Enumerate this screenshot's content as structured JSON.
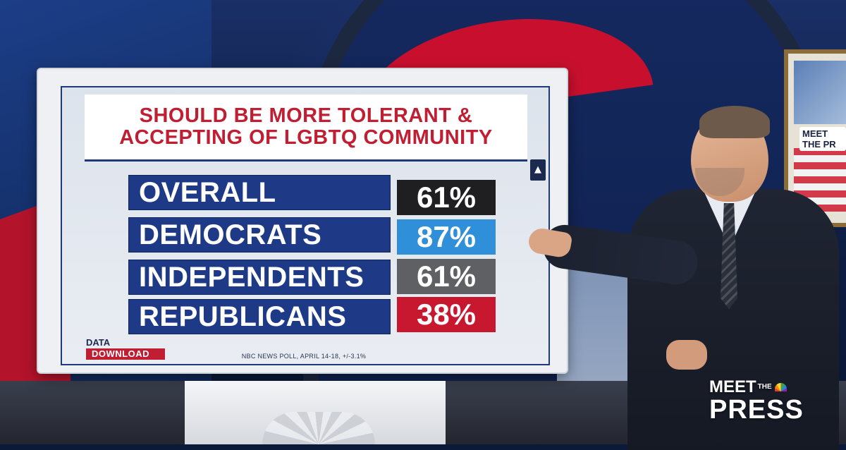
{
  "graphic": {
    "title_lines": [
      "SHOULD BE MORE TOLERANT &",
      "ACCEPTING OF LGBTQ COMMUNITY"
    ],
    "rows": [
      {
        "label": "OVERALL",
        "value": "61%",
        "color": "#1f1f22"
      },
      {
        "label": "DEMOCRATS",
        "value": "87%",
        "color": "#2f8fd8"
      },
      {
        "label": "INDEPENDENTS",
        "value": "61%",
        "color": "#5e6064"
      },
      {
        "label": "REPUBLICANS",
        "value": "38%",
        "color": "#c8182f"
      }
    ],
    "brand": {
      "line1": "DATA",
      "line2": "DOWNLOAD"
    },
    "source": "NBC NEWS POLL, APRIL 14-18, +/-3.1%"
  },
  "logo": {
    "meet": "MEET",
    "the": "THE",
    "press": "PRESS"
  },
  "background_frame_badge": "MEET THE PR",
  "colors": {
    "title_red": "#c01e33",
    "label_blue": "#1e3a86"
  }
}
